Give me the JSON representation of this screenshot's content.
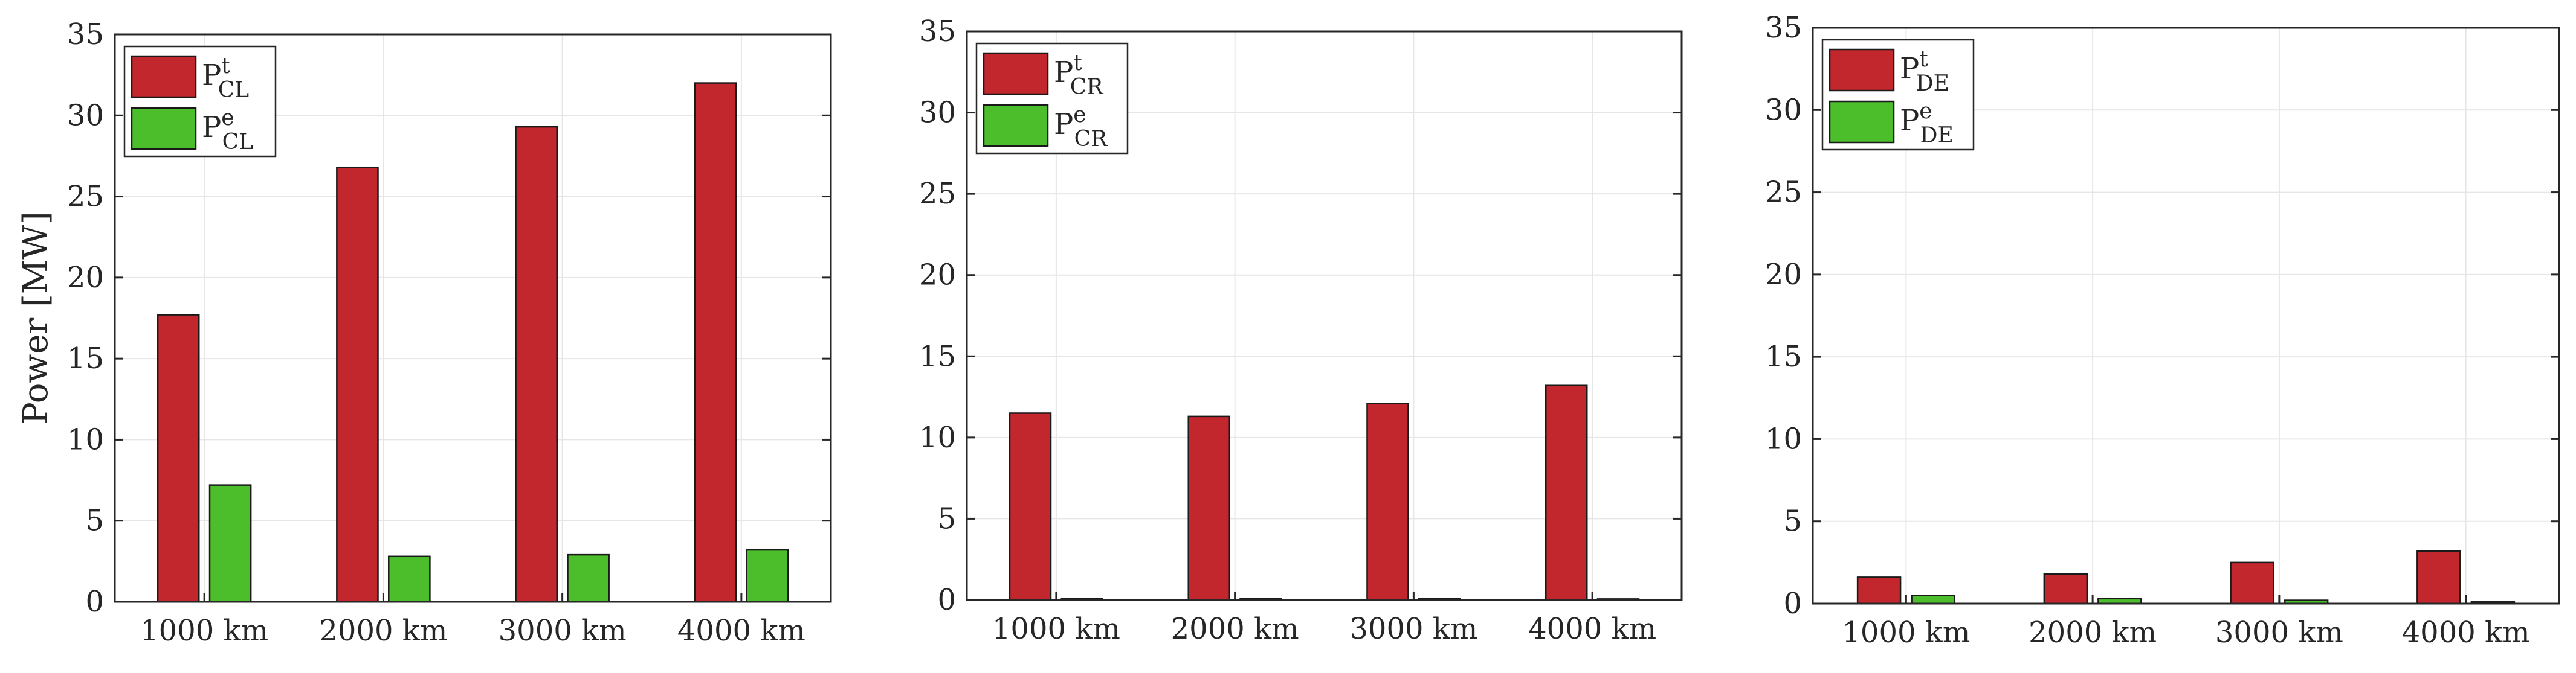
{
  "colors": {
    "thermal": "#c1272d",
    "electric": "#4cbe2c",
    "grid": "#e6e6e6",
    "axis": "#262626"
  },
  "chart_data": [
    {
      "type": "bar",
      "ylabel": "Power [MW]",
      "ylim": [
        0,
        35
      ],
      "yticks": [
        "0",
        "5",
        "10",
        "15",
        "20",
        "25",
        "30",
        "35"
      ],
      "grid": true,
      "legend_position": "top-left",
      "categories": [
        "1000 km",
        "2000 km",
        "3000 km",
        "4000 km"
      ],
      "series": [
        {
          "name": "P",
          "sup": "t",
          "sub": "CL",
          "values": [
            17.7,
            26.8,
            29.3,
            32.0
          ]
        },
        {
          "name": "P",
          "sup": "e",
          "sub": "CL",
          "values": [
            7.2,
            2.8,
            2.9,
            3.2
          ]
        }
      ]
    },
    {
      "type": "bar",
      "ylabel": "",
      "ylim": [
        0,
        35
      ],
      "yticks": [
        "0",
        "5",
        "10",
        "15",
        "20",
        "25",
        "30",
        "35"
      ],
      "grid": true,
      "legend_position": "top-left",
      "categories": [
        "1000 km",
        "2000 km",
        "3000 km",
        "4000 km"
      ],
      "series": [
        {
          "name": "P",
          "sup": "t",
          "sub": "CR",
          "values": [
            11.5,
            11.3,
            12.1,
            13.2
          ]
        },
        {
          "name": "P",
          "sup": "e",
          "sub": "CR",
          "values": [
            0.1,
            0.08,
            0.07,
            0.06
          ]
        }
      ]
    },
    {
      "type": "bar",
      "ylabel": "",
      "ylim": [
        0,
        35
      ],
      "yticks": [
        "0",
        "5",
        "10",
        "15",
        "20",
        "25",
        "30",
        "35"
      ],
      "grid": true,
      "legend_position": "top-left",
      "categories": [
        "1000 km",
        "2000 km",
        "3000 km",
        "4000 km"
      ],
      "series": [
        {
          "name": "P",
          "sup": "t",
          "sub": "DE",
          "values": [
            1.6,
            1.8,
            2.5,
            3.2
          ]
        },
        {
          "name": "P",
          "sup": "e",
          "sub": "DE",
          "values": [
            0.5,
            0.3,
            0.2,
            0.1
          ]
        }
      ]
    }
  ]
}
